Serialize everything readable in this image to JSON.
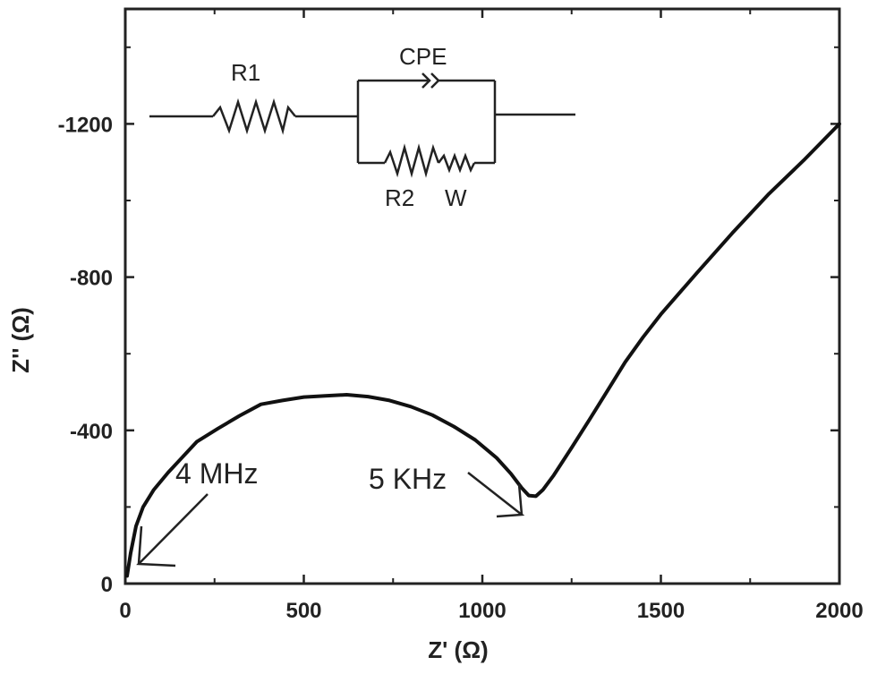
{
  "chart_data": {
    "type": "line",
    "title": "",
    "xlabel": "Z' (Ω)",
    "ylabel": "Z'' (Ω)",
    "xlim": [
      0,
      2000
    ],
    "ylim": [
      0,
      -1500
    ],
    "x_ticks": [
      "0",
      "500",
      "1000",
      "1500",
      "2000"
    ],
    "y_ticks": [
      "0",
      "-400",
      "-800",
      "-1200"
    ],
    "grid": false,
    "series": [
      {
        "x": [
          5,
          15,
          30,
          50,
          80,
          120,
          160,
          200,
          260,
          320,
          380,
          440,
          500,
          560,
          620,
          680,
          740,
          800,
          860,
          920,
          980,
          1040,
          1080,
          1110,
          1130,
          1150,
          1170,
          1200,
          1250,
          1300,
          1350,
          1400,
          1450,
          1500,
          1600,
          1700,
          1800,
          1900,
          2000
        ],
        "y": [
          -20,
          -80,
          -150,
          -200,
          -245,
          -290,
          -330,
          -370,
          -405,
          -438,
          -468,
          -478,
          -487,
          -490,
          -493,
          -488,
          -478,
          -462,
          -440,
          -410,
          -375,
          -328,
          -287,
          -250,
          -230,
          -228,
          -245,
          -283,
          -355,
          -428,
          -503,
          -578,
          -643,
          -703,
          -810,
          -915,
          -1015,
          -1105,
          -1200
        ]
      }
    ],
    "annotations": [
      {
        "text": "4 MHz",
        "x": 30,
        "y": -150
      },
      {
        "text": "5 KHz",
        "x": 1110,
        "y": -250
      }
    ],
    "inset_circuit": {
      "labels": [
        "R1",
        "CPE",
        "R2",
        "W"
      ]
    }
  }
}
